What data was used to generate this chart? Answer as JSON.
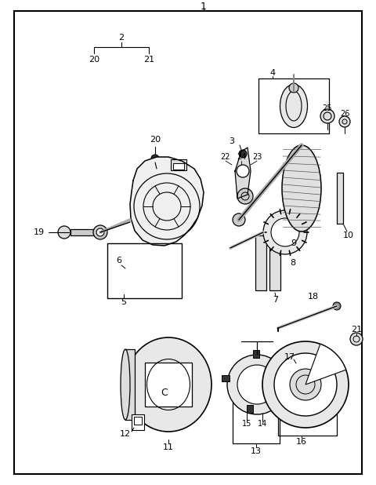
{
  "bg_color": "#ffffff",
  "border_color": "#000000",
  "fig_width": 4.8,
  "fig_height": 6.18,
  "dpi": 100
}
